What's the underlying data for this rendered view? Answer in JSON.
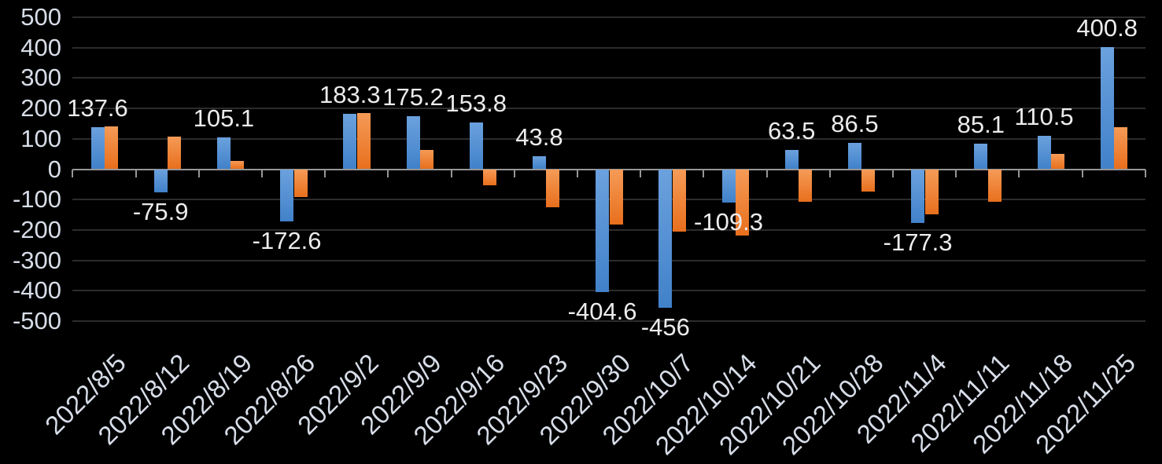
{
  "chart_data": {
    "type": "bar",
    "title": "",
    "xlabel": "",
    "ylabel": "",
    "legend": "none",
    "grid": true,
    "background": "#000000",
    "categories": [
      "2022/8/5",
      "2022/8/12",
      "2022/8/19",
      "2022/8/26",
      "2022/9/2",
      "2022/9/9",
      "2022/9/16",
      "2022/9/23",
      "2022/9/30",
      "2022/10/7",
      "2022/10/14",
      "2022/10/21",
      "2022/10/28",
      "2022/11/4",
      "2022/11/11",
      "2022/11/18",
      "2022/11/25"
    ],
    "series": [
      {
        "name": "blue-series",
        "color_top": "#6BA1DE",
        "color_bottom": "#4181C9",
        "labels_visible": true,
        "values": [
          137.6,
          -75.9,
          105.1,
          -172.6,
          183.3,
          175.2,
          153.8,
          43.8,
          -404.6,
          -456,
          -109.3,
          63.5,
          86.5,
          -177.3,
          85.1,
          110.5,
          400.8
        ],
        "data_labels": [
          "137.6",
          "-75.9",
          "105.1",
          "-172.6",
          "183.3",
          "175.2",
          "153.8",
          "43.8",
          "-404.6",
          "-456",
          "-109.3",
          "63.5",
          "86.5",
          "-177.3",
          "85.1",
          "110.5",
          "400.8"
        ]
      },
      {
        "name": "orange-series",
        "color_top": "#F59B57",
        "color_bottom": "#E86F1D",
        "labels_visible": false,
        "values": [
          140,
          108,
          26,
          -92,
          184,
          63,
          -52,
          -126,
          -181,
          -205,
          -218,
          -106,
          -74,
          -148,
          -106,
          50,
          139
        ]
      }
    ],
    "y_axis": {
      "min": -500,
      "max": 500,
      "step": 100,
      "tick_labels": [
        "500",
        "400",
        "300",
        "200",
        "100",
        "0",
        "-100",
        "-200",
        "-300",
        "-400",
        "-500"
      ]
    },
    "colors": {
      "gridline": "#2c2c2c",
      "axis_line": "#969696",
      "axis_label": "#D7DDE8",
      "data_label": "#ECECEC"
    }
  }
}
